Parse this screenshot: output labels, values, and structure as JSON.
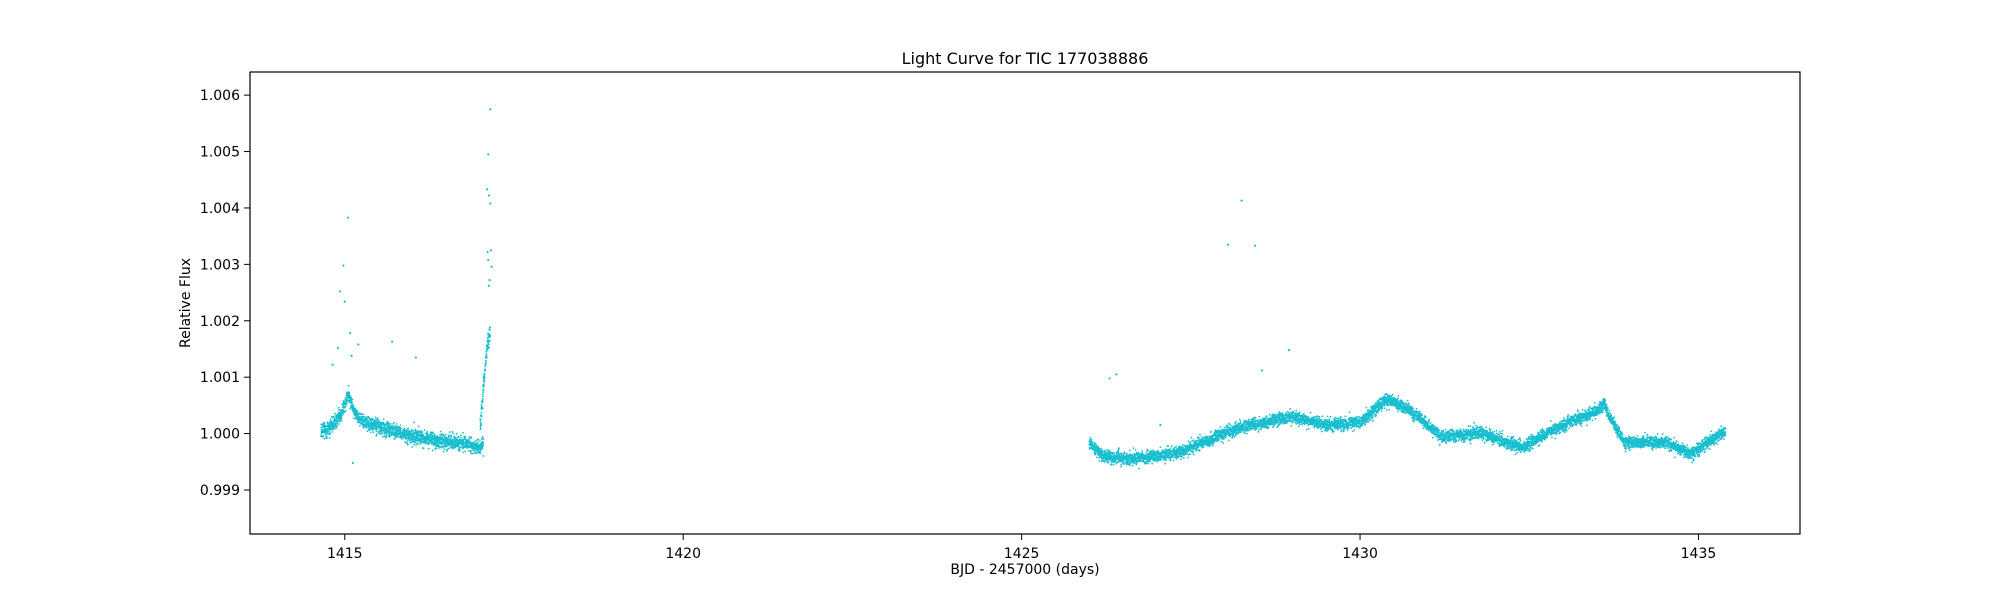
{
  "chart_data": {
    "type": "scatter",
    "title": "Light Curve for TIC 177038886",
    "xlabel": "BJD - 2457000 (days)",
    "ylabel": "Relative Flux",
    "xlim": [
      1413.6,
      1436.5
    ],
    "ylim": [
      0.99822,
      1.00641
    ],
    "xticks": [
      1415,
      1420,
      1425,
      1430,
      1435
    ],
    "xtick_labels": [
      "1415",
      "1420",
      "1425",
      "1430",
      "1435"
    ],
    "yticks": [
      0.999,
      1.0,
      1.001,
      1.002,
      1.003,
      1.004,
      1.005,
      1.006
    ],
    "ytick_labels": [
      "0.999",
      "1.000",
      "1.001",
      "1.002",
      "1.003",
      "1.004",
      "1.005",
      "1.006"
    ],
    "grid": false,
    "marker_color": "#17becf",
    "series": [
      {
        "segments": [
          {
            "x_range": [
              1414.65,
              1417.05
            ],
            "trend_x": [
              1414.65,
              1414.8,
              1414.95,
              1415.05,
              1415.15,
              1415.3,
              1415.6,
              1416.0,
              1416.4,
              1416.8,
              1417.0,
              1417.05
            ],
            "trend_y": [
              1.00005,
              1.00012,
              1.00035,
              1.0007,
              1.00035,
              1.0002,
              1.0001,
              0.99995,
              0.99988,
              0.99982,
              0.99975,
              0.99985
            ],
            "scatter": 0.00012
          },
          {
            "x_range": [
              1417.0,
              1417.15
            ],
            "trend_x": [
              1417.0,
              1417.05,
              1417.1,
              1417.15
            ],
            "trend_y": [
              1.0001,
              1.0008,
              1.0015,
              1.0018
            ],
            "scatter": 0.00015
          },
          {
            "x_range": [
              1426.0,
              1435.4
            ],
            "trend_x": [
              1426.0,
              1426.2,
              1426.6,
              1427.0,
              1427.4,
              1427.8,
              1428.2,
              1428.6,
              1429.0,
              1429.5,
              1430.0,
              1430.4,
              1430.7,
              1431.2,
              1431.8,
              1432.4,
              1432.9,
              1433.4,
              1433.6,
              1433.9,
              1434.5,
              1434.9,
              1435.4
            ],
            "trend_y": [
              0.99985,
              0.9996,
              0.99955,
              0.9996,
              0.9997,
              0.9999,
              1.0001,
              1.0002,
              1.0003,
              1.00015,
              1.0002,
              1.0006,
              1.00045,
              0.99995,
              1.0,
              0.99975,
              1.0001,
              1.00035,
              1.0005,
              0.99985,
              0.99985,
              0.99965,
              1.00005
            ],
            "scatter": 0.0001
          }
        ],
        "outliers": [
          [
            1415.05,
            1.00383
          ],
          [
            1414.98,
            1.00298
          ],
          [
            1414.93,
            1.00252
          ],
          [
            1415.0,
            1.00234
          ],
          [
            1414.9,
            1.00152
          ],
          [
            1415.08,
            1.00178
          ],
          [
            1415.2,
            1.00158
          ],
          [
            1415.1,
            1.00138
          ],
          [
            1414.82,
            1.00122
          ],
          [
            1415.12,
            0.99948
          ],
          [
            1415.7,
            1.00163
          ],
          [
            1416.05,
            1.00135
          ],
          [
            1417.15,
            1.00575
          ],
          [
            1417.12,
            1.00495
          ],
          [
            1417.1,
            1.00433
          ],
          [
            1417.13,
            1.00422
          ],
          [
            1417.15,
            1.00408
          ],
          [
            1417.11,
            1.00322
          ],
          [
            1417.16,
            1.00325
          ],
          [
            1417.12,
            1.00308
          ],
          [
            1417.17,
            1.00296
          ],
          [
            1417.14,
            1.00272
          ],
          [
            1417.13,
            1.00262
          ],
          [
            1426.3,
            1.00098
          ],
          [
            1426.4,
            1.00105
          ],
          [
            1428.25,
            1.00413
          ],
          [
            1428.05,
            1.00335
          ],
          [
            1428.45,
            1.00333
          ],
          [
            1428.55,
            1.00112
          ],
          [
            1428.95,
            1.00148
          ],
          [
            1427.05,
            1.00015
          ]
        ]
      }
    ]
  }
}
